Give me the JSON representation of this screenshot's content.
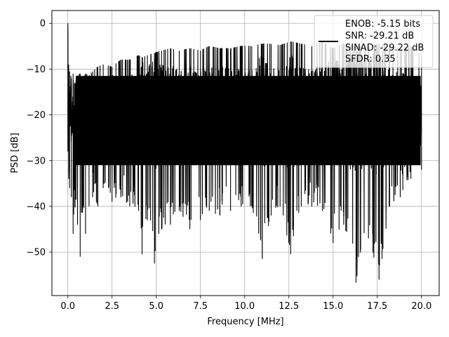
{
  "chart_data": {
    "type": "line",
    "title": "",
    "xlabel": "Frequency [MHz]",
    "ylabel": "PSD [dB]",
    "xlim": [
      -0.9,
      21.0
    ],
    "ylim": [
      -59.5,
      2.8
    ],
    "x_ticks": [
      0.0,
      2.5,
      5.0,
      7.5,
      10.0,
      12.5,
      15.0,
      17.5,
      20.0
    ],
    "x_tick_labels": [
      "0.0",
      "2.5",
      "5.0",
      "7.5",
      "10.0",
      "12.5",
      "15.0",
      "17.5",
      "20.0"
    ],
    "y_ticks": [
      0,
      -10,
      -20,
      -30,
      -40,
      -50
    ],
    "y_tick_labels": [
      "0",
      "−10",
      "−20",
      "−30",
      "−40",
      "−50"
    ],
    "grid": true,
    "legend_position": "top-right",
    "legend_lines": [
      "ENOB: -5.15 bits",
      "SNR: -29.21 dB",
      "SINAD: -29.22 dB",
      "SFDR: 0.35"
    ],
    "series_color": "#000000",
    "series": [
      {
        "x": [
          0.0,
          0.05,
          0.1,
          0.2,
          0.3,
          0.4,
          0.55,
          0.7,
          0.85,
          1.0,
          1.2,
          1.4,
          1.7,
          2.0,
          2.5,
          3.0,
          3.5,
          4.0,
          4.2,
          4.5,
          4.9,
          5.3,
          5.8,
          6.3,
          6.9,
          7.5,
          8.0,
          8.6,
          9.2,
          9.8,
          10.4,
          11.0,
          11.5,
          12.0,
          12.6,
          13.2,
          13.8,
          14.4,
          15.0,
          15.6,
          16.3,
          17.0,
          17.6,
          18.2,
          18.8,
          19.4,
          20.0
        ],
        "upper": [
          0.0,
          -9.0,
          -10.5,
          -12.0,
          -11.0,
          -13.0,
          -11.5,
          -11.0,
          -12.5,
          -11.0,
          -11.5,
          -10.5,
          -9.5,
          -9.0,
          -9.5,
          -8.0,
          -8.0,
          -7.0,
          -7.5,
          -7.0,
          -6.5,
          -6.0,
          -5.5,
          -6.0,
          -5.5,
          -6.0,
          -5.0,
          -5.5,
          -5.5,
          -5.0,
          -5.0,
          -4.5,
          -4.5,
          -4.8,
          -4.0,
          -4.5,
          -5.0,
          -4.0,
          -5.5,
          -4.5,
          -5.0,
          -5.0,
          -4.5,
          -5.0,
          -5.5,
          -5.0,
          -7.0
        ],
        "lower": [
          -28.0,
          -34.0,
          -36.0,
          -38.0,
          -46.0,
          -40.0,
          -44.0,
          -51.0,
          -40.0,
          -46.0,
          -40.0,
          -38.0,
          -40.0,
          -36.0,
          -39.0,
          -38.0,
          -40.0,
          -41.0,
          -50.5,
          -43.0,
          -52.5,
          -45.0,
          -44.0,
          -41.0,
          -45.0,
          -43.0,
          -41.0,
          -42.0,
          -41.0,
          -40.0,
          -40.0,
          -51.5,
          -42.0,
          -40.0,
          -50.5,
          -40.0,
          -40.0,
          -41.0,
          -48.0,
          -44.0,
          -56.7,
          -47.0,
          -56.0,
          -40.0,
          -38.0,
          -34.0,
          -32.0
        ]
      }
    ]
  }
}
